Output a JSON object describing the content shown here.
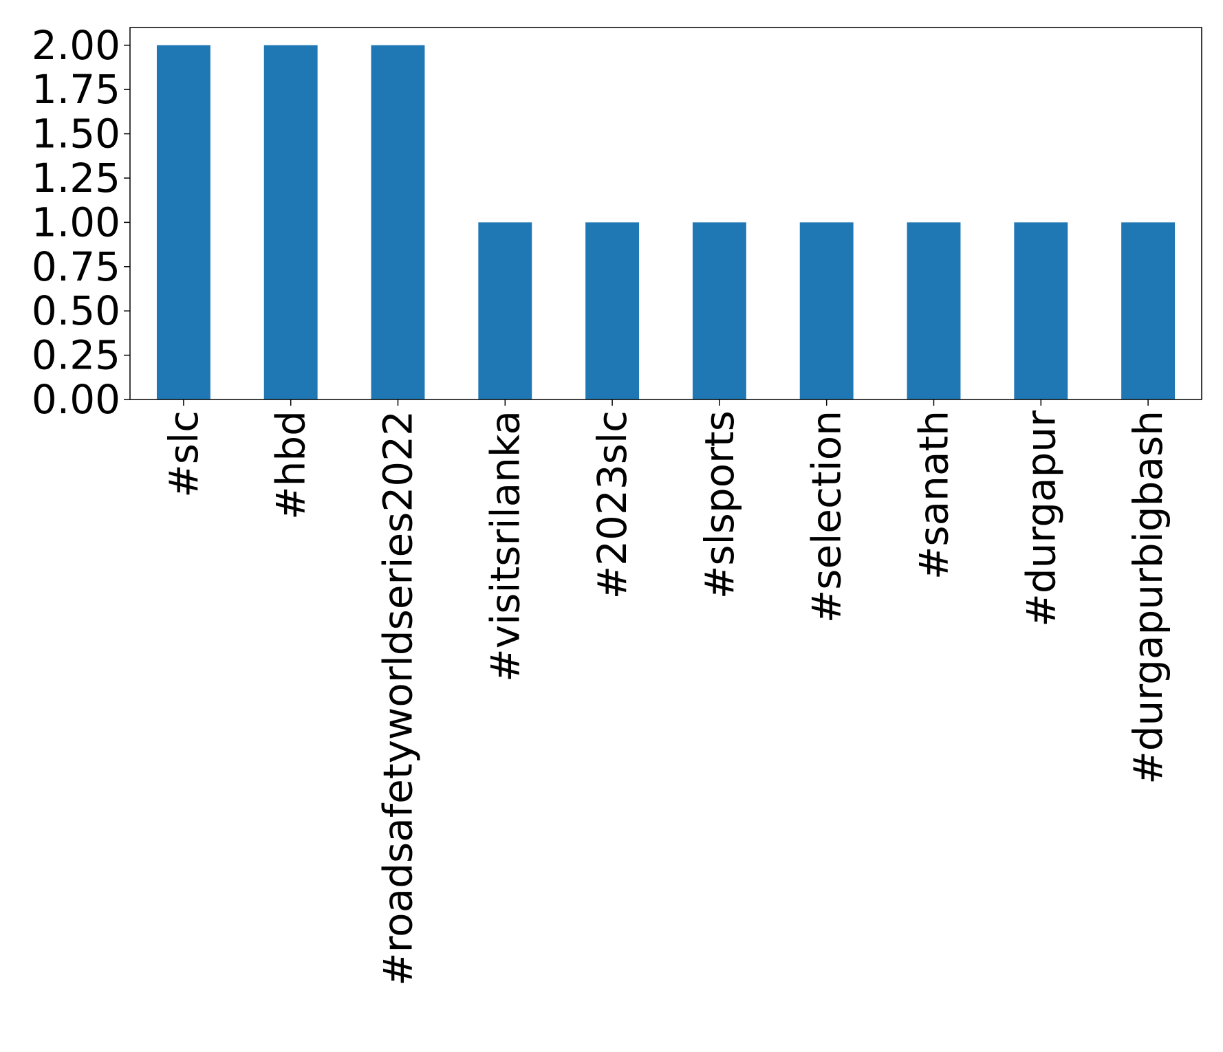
{
  "chart_data": {
    "type": "bar",
    "categories": [
      "#slc",
      "#hbd",
      "#roadsafetyworldseries2022",
      "#visitsrilanka",
      "#2023slc",
      "#slsports",
      "#selection",
      "#sanath",
      "#durgapur",
      "#durgapurbigbash"
    ],
    "values": [
      2,
      2,
      2,
      1,
      1,
      1,
      1,
      1,
      1,
      1
    ],
    "yticks": [
      "0.00",
      "0.25",
      "0.50",
      "0.75",
      "1.00",
      "1.25",
      "1.50",
      "1.75",
      "2.00"
    ],
    "ylim": [
      0,
      2.1
    ],
    "title": "",
    "xlabel": "",
    "ylabel": "",
    "bar_color": "#1f77b4",
    "grid": false,
    "legend": "none"
  }
}
